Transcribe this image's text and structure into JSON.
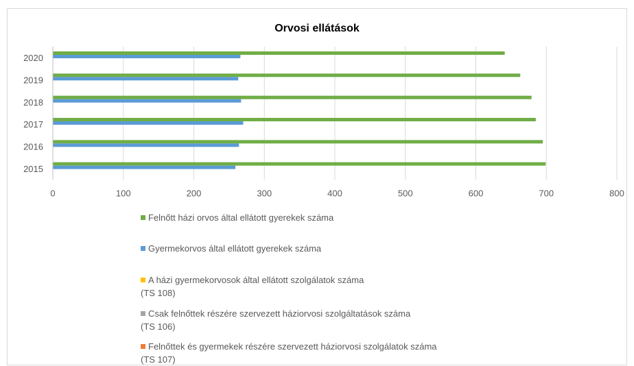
{
  "chart_data": {
    "type": "bar",
    "orientation": "horizontal",
    "title": "Orvosi ellátások",
    "categories": [
      "2015",
      "2016",
      "2017",
      "2018",
      "2019",
      "2020"
    ],
    "series": [
      {
        "name": "Felnőtt házi orvos által ellátott gyerekek száma",
        "color": "#70ad47",
        "values": [
          699,
          695,
          685,
          679,
          663,
          641
        ]
      },
      {
        "name": "Gyermekorvos által ellátott gyerekek száma",
        "color": "#5b9bd5",
        "values": [
          259,
          264,
          270,
          267,
          263,
          266
        ]
      },
      {
        "name": "A házi gyermekorvosok által ellátott szolgálatok száma\n(TS 108)",
        "color": "#ffc000",
        "values": [
          0,
          0,
          0,
          0,
          0,
          0
        ]
      },
      {
        "name": "Csak felnőttek részére szervezett háziorvosi szolgáltatások száma\n(TS 106)",
        "color": "#a5a5a5",
        "values": [
          0,
          0,
          0,
          0,
          0,
          0
        ]
      },
      {
        "name": "Felnőttek és gyermekek részére szervezett háziorvosi szolgálatok száma\n(TS 107)",
        "color": "#ed7d31",
        "values": [
          0,
          0,
          0,
          0,
          0,
          0
        ]
      }
    ],
    "xlim": [
      0,
      800
    ],
    "xticks": [
      0,
      100,
      200,
      300,
      400,
      500,
      600,
      700,
      800
    ],
    "grid": true,
    "legend": "bottom"
  }
}
